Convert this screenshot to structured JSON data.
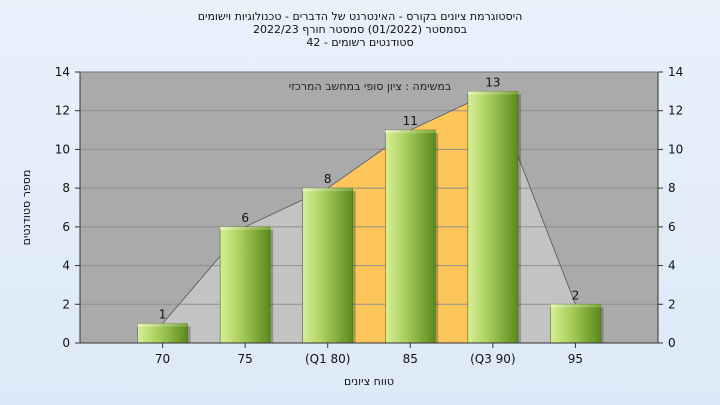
{
  "titles": [
    "היסטוגרמת ציונים בקורס - האינטרנט של הדברים - טכנולוגיות וישומים",
    "בסמסטר  (01/2022)  סמסטר חורף 2022/23",
    "סטודנטים רשומים - 42"
  ],
  "chart_data": {
    "type": "bar",
    "categories": [
      "70",
      "75",
      "(Q1 80)",
      "85",
      "(Q3 90)",
      "95"
    ],
    "values": [
      1,
      6,
      8,
      11,
      13,
      2
    ],
    "xlabel": "טווח ציונים",
    "ylabel": "מספר סטודנטים",
    "ylim": [
      0,
      14
    ],
    "yticks": [
      0,
      2,
      4,
      6,
      8,
      10,
      12,
      14
    ],
    "annotation": "במשימה : ציון סופי במחשב המרכזי",
    "grid": true,
    "highlight_range": [
      "(Q1 80)",
      "(Q3 90)"
    ],
    "colors": {
      "plot_bg": "#aaaaaa",
      "area_gray": "#c3c3c3",
      "area_quartile": "#fdc65a",
      "bar_light": "#d7ef96",
      "bar_dark": "#5a8a1e"
    }
  }
}
